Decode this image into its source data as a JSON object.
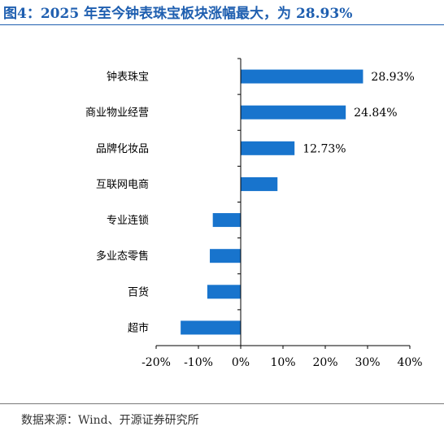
{
  "figure": {
    "title": "图4：2025 年至今钟表珠宝板块涨幅最大，为 28.93%",
    "source": "数据来源：Wind、开源证券研究所"
  },
  "colors": {
    "bar": "#1874cd",
    "title": "#1f5fb0",
    "axis": "#000000"
  },
  "chart_data": {
    "type": "bar",
    "orientation": "horizontal",
    "categories": [
      "钟表珠宝",
      "商业物业经营",
      "品牌化妆品",
      "互联网电商",
      "专业连锁",
      "多业态零售",
      "百货",
      "超市"
    ],
    "values": [
      28.93,
      24.84,
      12.73,
      8.7,
      -6.6,
      -7.3,
      -7.9,
      -14.2
    ],
    "data_labels": [
      "28.93%",
      "24.84%",
      "12.73%",
      "",
      "",
      "",
      "",
      ""
    ],
    "xlim": [
      -20,
      40
    ],
    "xticks": [
      -20,
      -10,
      0,
      10,
      20,
      30,
      40
    ],
    "xtick_labels": [
      "-20%",
      "-10%",
      "0%",
      "10%",
      "20%",
      "30%",
      "40%"
    ],
    "grid": false,
    "legend": "none",
    "xlabel": "",
    "ylabel": ""
  }
}
